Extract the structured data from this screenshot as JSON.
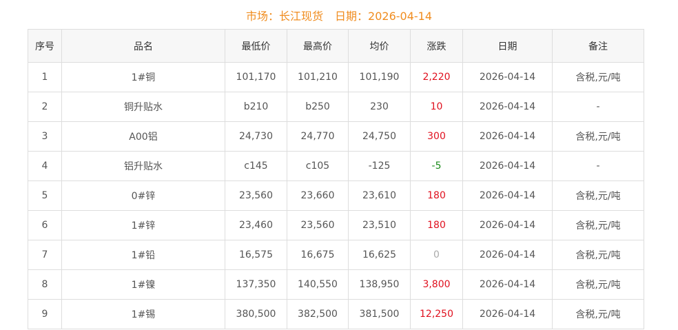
{
  "header": {
    "market_label": "市场：长江现货",
    "date_label": "日期：2026-04-14"
  },
  "colors": {
    "title": "#f08c1e",
    "up": "#e0101e",
    "down": "#1a8a1a",
    "flat": "#aaaaaa"
  },
  "table": {
    "columns": [
      "序号",
      "品名",
      "最低价",
      "最高价",
      "均价",
      "涨跌",
      "日期",
      "备注"
    ],
    "rows": [
      [
        "1",
        "1#铜",
        "101,170",
        "101,210",
        "101,190",
        "2,220",
        "2026-04-14",
        "含税,元/吨"
      ],
      [
        "2",
        "铜升贴水",
        "b210",
        "b250",
        "230",
        "10",
        "2026-04-14",
        "-"
      ],
      [
        "3",
        "A00铝",
        "24,730",
        "24,770",
        "24,750",
        "300",
        "2026-04-14",
        "含税,元/吨"
      ],
      [
        "4",
        "铝升贴水",
        "c145",
        "c105",
        "-125",
        "-5",
        "2026-04-14",
        "-"
      ],
      [
        "5",
        "0#锌",
        "23,560",
        "23,660",
        "23,610",
        "180",
        "2026-04-14",
        "含税,元/吨"
      ],
      [
        "6",
        "1#锌",
        "23,460",
        "23,560",
        "23,510",
        "180",
        "2026-04-14",
        "含税,元/吨"
      ],
      [
        "7",
        "1#铅",
        "16,575",
        "16,675",
        "16,625",
        "0",
        "2026-04-14",
        "含税,元/吨"
      ],
      [
        "8",
        "1#镍",
        "137,350",
        "140,550",
        "138,950",
        "3,800",
        "2026-04-14",
        "含税,元/吨"
      ],
      [
        "9",
        "1#锡",
        "380,500",
        "382,500",
        "381,500",
        "12,250",
        "2026-04-14",
        "含税,元/吨"
      ]
    ]
  }
}
